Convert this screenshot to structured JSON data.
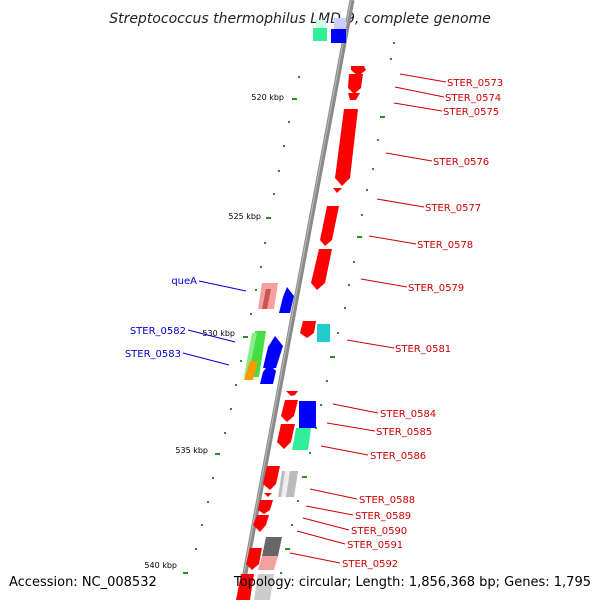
{
  "title": "Streptococcus thermophilus LMD-9, complete genome",
  "footer": {
    "accession": "Accession: NC_008532",
    "topology": "Topology: circular; Length: 1,856,368 bp; Genes: 1,795"
  },
  "scale_labels": [
    "520 kbp",
    "525 kbp",
    "530 kbp",
    "535 kbp",
    "540 kbp"
  ],
  "colors": {
    "backbone": "#8a8a8a",
    "forward_label": "#cc0000",
    "reverse_label": "#0000cc",
    "tick": "#2e8b2e",
    "red": "#ff0000",
    "blue": "#0000ff",
    "pink": "#f4a0a0",
    "cyan": "#22cccc",
    "teal": "#33ee99",
    "gray": "#bbbbbb",
    "dark_gray": "#666666",
    "green": "#44dd44",
    "orange": "#ff9900",
    "lavender": "#ccccff"
  },
  "labels_forward": [
    "STER_0573",
    "STER_0574",
    "STER_0575",
    "STER_0576",
    "STER_0577",
    "STER_0578",
    "STER_0579",
    "STER_0581",
    "STER_0584",
    "STER_0585",
    "STER_0586",
    "STER_0588",
    "STER_0589",
    "STER_0590",
    "STER_0591",
    "STER_0592"
  ],
  "labels_reverse": [
    "queA",
    "STER_0582",
    "STER_0583"
  ]
}
